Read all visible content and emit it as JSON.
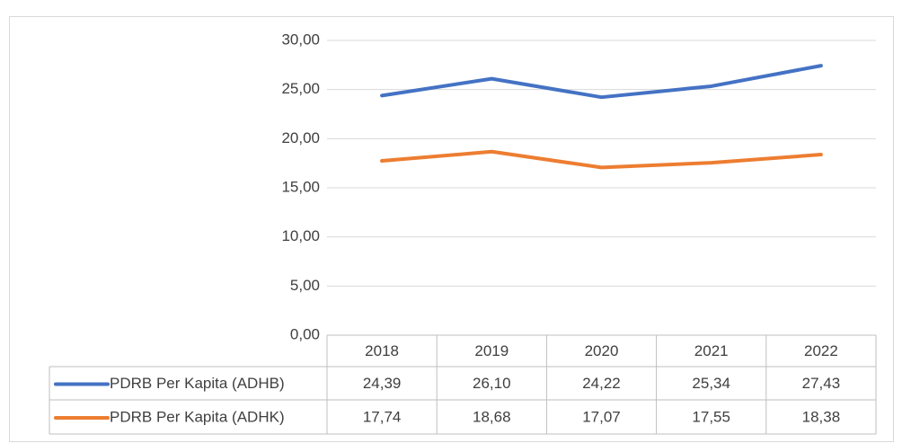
{
  "chart_data": {
    "type": "line",
    "categories": [
      "2018",
      "2019",
      "2020",
      "2021",
      "2022"
    ],
    "series": [
      {
        "name": "PDRB Per Kapita (ADHB)",
        "color": "#4472c4",
        "values": [
          24.39,
          26.1,
          24.22,
          25.34,
          27.43
        ],
        "value_labels": [
          "24,39",
          "26,10",
          "24,22",
          "25,34",
          "27,43"
        ]
      },
      {
        "name": "PDRB Per Kapita (ADHK)",
        "color": "#ed7d31",
        "values": [
          17.74,
          18.68,
          17.07,
          17.55,
          18.38
        ],
        "value_labels": [
          "17,74",
          "18,68",
          "17,07",
          "17,55",
          "18,38"
        ]
      }
    ],
    "ylim": [
      0,
      30
    ],
    "yticks": [
      {
        "value": 0,
        "label": "0,00"
      },
      {
        "value": 5,
        "label": "5,00"
      },
      {
        "value": 10,
        "label": "10,00"
      },
      {
        "value": 15,
        "label": "15,00"
      },
      {
        "value": 20,
        "label": "20,00"
      },
      {
        "value": 25,
        "label": "25,00"
      },
      {
        "value": 30,
        "label": "30,00"
      }
    ],
    "grid": true
  }
}
